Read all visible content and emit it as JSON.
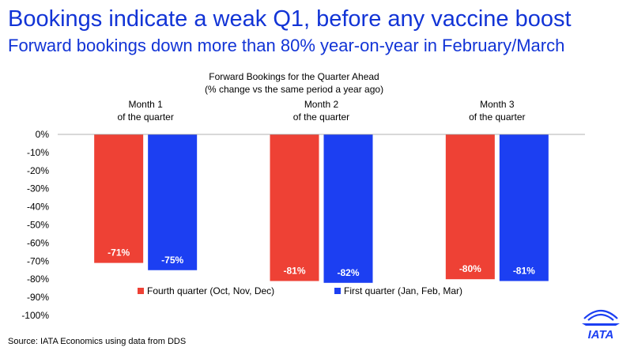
{
  "header": {
    "title": "Bookings indicate a weak Q1, before any vaccine boost",
    "subtitle": "Forward bookings down more than 80% year-on-year in February/March"
  },
  "footer": {
    "source": "Source: IATA Economics using data from DDS"
  },
  "logo": {
    "text": "IATA"
  },
  "colors": {
    "headline": "#1234d6",
    "series1": "#ee4135",
    "series2": "#1c3ff2"
  },
  "chart_data": {
    "type": "bar",
    "title": "Forward Bookings for the Quarter Ahead",
    "subtitle": "(% change vs the same period a year ago)",
    "xlabel": "",
    "ylabel": "",
    "categories": [
      [
        "Month 1",
        "of the quarter"
      ],
      [
        "Month 2",
        "of the quarter"
      ],
      [
        "Month 3",
        "of the quarter"
      ]
    ],
    "series": [
      {
        "name": "Fourth quarter (Oct, Nov, Dec)",
        "color": "#ee4135",
        "values": [
          -71,
          -81,
          -80
        ]
      },
      {
        "name": "First quarter (Jan, Feb, Mar)",
        "color": "#1c3ff2",
        "values": [
          -75,
          -82,
          -81
        ]
      }
    ],
    "ylim": [
      -100,
      0
    ],
    "yticks": [
      0,
      -10,
      -20,
      -30,
      -40,
      -50,
      -60,
      -70,
      -80,
      -90,
      -100
    ],
    "ytick_format": "%",
    "data_labels": true,
    "grid": false,
    "legend": "inside-bottom"
  }
}
